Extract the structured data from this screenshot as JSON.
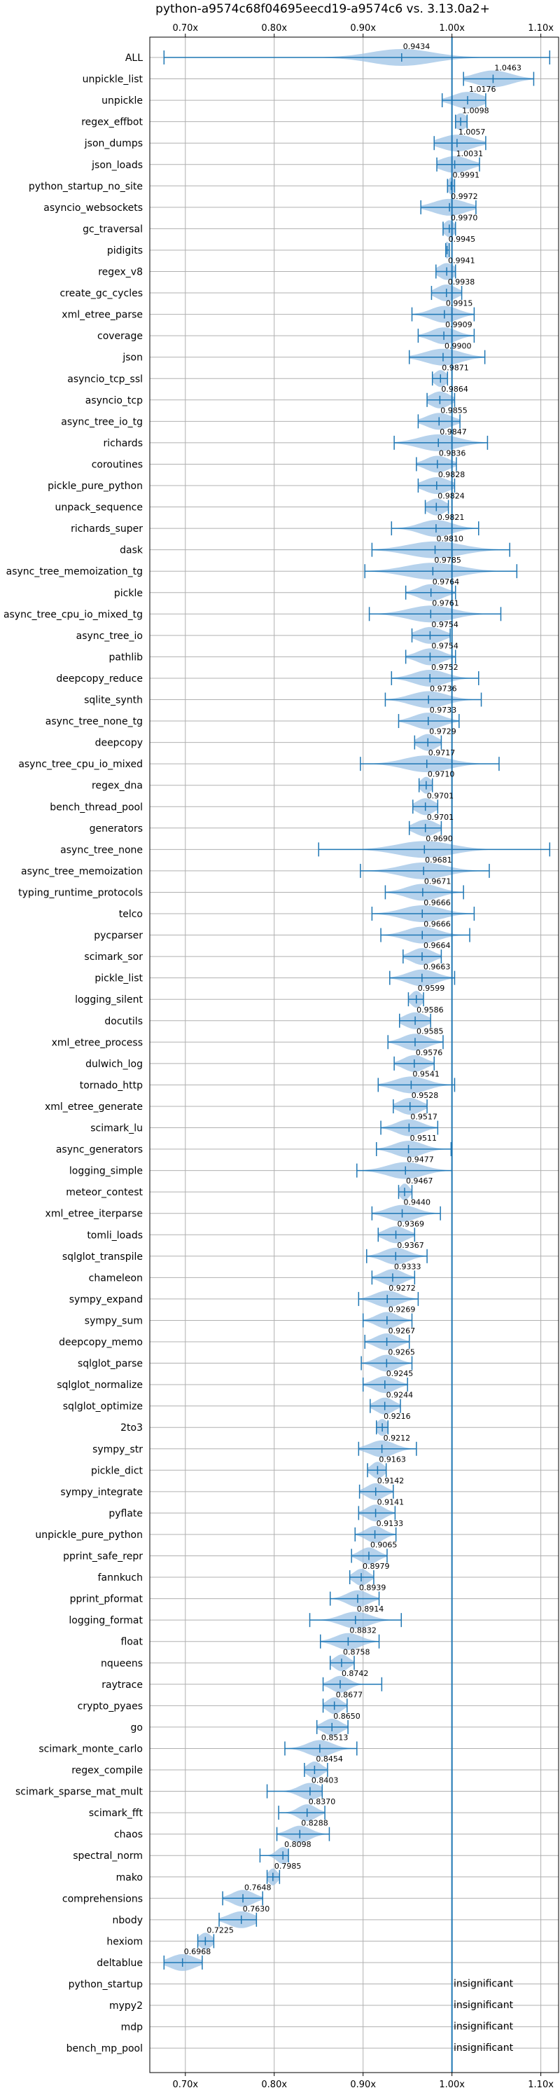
{
  "chart_data": {
    "type": "violin",
    "title": "python-a9574c68f04695eecd19-a9574c6 vs. 3.13.0a2+",
    "xlim": [
      0.66,
      1.12
    ],
    "xticks": [
      0.7,
      0.8,
      0.9,
      1.0,
      1.1
    ],
    "xtick_labels": [
      "0.70x",
      "0.80x",
      "0.90x",
      "1.00x",
      "1.10x"
    ],
    "grid": true,
    "reference_line": 1.0,
    "colors": {
      "violin": "#9ec3e6",
      "line": "#1f77b4",
      "grid": "#b0b0b0"
    },
    "insignificant_label": "insignificant",
    "benchmarks": [
      {
        "name": "ALL",
        "median": 0.9434,
        "min": 0.676,
        "max": 1.11,
        "spread": 0.035,
        "label": "0.9434"
      },
      {
        "name": "unpickle_list",
        "median": 1.0463,
        "min": 1.013,
        "max": 1.092,
        "spread": 0.02,
        "label": "1.0463"
      },
      {
        "name": "unpickle",
        "median": 1.0176,
        "min": 0.989,
        "max": 1.038,
        "spread": 0.016,
        "label": "1.0176"
      },
      {
        "name": "regex_effbot",
        "median": 1.0098,
        "min": 1.004,
        "max": 1.017,
        "spread": 0.007,
        "label": "1.0098"
      },
      {
        "name": "json_dumps",
        "median": 1.0057,
        "min": 0.98,
        "max": 1.038,
        "spread": 0.018,
        "label": "1.0057"
      },
      {
        "name": "json_loads",
        "median": 1.0031,
        "min": 0.983,
        "max": 1.031,
        "spread": 0.016,
        "label": "1.0031"
      },
      {
        "name": "python_startup_no_site",
        "median": 0.9991,
        "min": 0.995,
        "max": 1.003,
        "spread": 0.004,
        "label": "0.9991"
      },
      {
        "name": "asyncio_websockets",
        "median": 0.9972,
        "min": 0.965,
        "max": 1.027,
        "spread": 0.018,
        "label": "0.9972"
      },
      {
        "name": "gc_traversal",
        "median": 0.997,
        "min": 0.99,
        "max": 1.004,
        "spread": 0.006,
        "label": "0.9970"
      },
      {
        "name": "pidigits",
        "median": 0.9945,
        "min": 0.993,
        "max": 0.997,
        "spread": 0.003,
        "label": "0.9945"
      },
      {
        "name": "regex_v8",
        "median": 0.9941,
        "min": 0.982,
        "max": 1.004,
        "spread": 0.009,
        "label": "0.9941"
      },
      {
        "name": "create_gc_cycles",
        "median": 0.9938,
        "min": 0.977,
        "max": 1.011,
        "spread": 0.011,
        "label": "0.9938"
      },
      {
        "name": "xml_etree_parse",
        "median": 0.9915,
        "min": 0.955,
        "max": 1.025,
        "spread": 0.015,
        "label": "0.9915"
      },
      {
        "name": "coverage",
        "median": 0.9909,
        "min": 0.962,
        "max": 1.025,
        "spread": 0.014,
        "label": "0.9909"
      },
      {
        "name": "json",
        "median": 0.99,
        "min": 0.952,
        "max": 1.037,
        "spread": 0.02,
        "label": "0.9900"
      },
      {
        "name": "asyncio_tcp_ssl",
        "median": 0.9871,
        "min": 0.978,
        "max": 0.995,
        "spread": 0.007,
        "label": "0.9871"
      },
      {
        "name": "asyncio_tcp",
        "median": 0.9864,
        "min": 0.972,
        "max": 1.003,
        "spread": 0.011,
        "label": "0.9864"
      },
      {
        "name": "async_tree_io_tg",
        "median": 0.9855,
        "min": 0.962,
        "max": 1.009,
        "spread": 0.014,
        "label": "0.9855"
      },
      {
        "name": "richards",
        "median": 0.9847,
        "min": 0.935,
        "max": 1.04,
        "spread": 0.022,
        "label": "0.9847"
      },
      {
        "name": "coroutines",
        "median": 0.9836,
        "min": 0.96,
        "max": 1.005,
        "spread": 0.013,
        "label": "0.9836"
      },
      {
        "name": "pickle_pure_python",
        "median": 0.9828,
        "min": 0.962,
        "max": 1.003,
        "spread": 0.014,
        "label": "0.9828"
      },
      {
        "name": "unpack_sequence",
        "median": 0.9824,
        "min": 0.97,
        "max": 0.996,
        "spread": 0.01,
        "label": "0.9824"
      },
      {
        "name": "richards_super",
        "median": 0.9821,
        "min": 0.932,
        "max": 1.03,
        "spread": 0.018,
        "label": "0.9821"
      },
      {
        "name": "dask",
        "median": 0.981,
        "min": 0.91,
        "max": 1.065,
        "spread": 0.03,
        "label": "0.9810"
      },
      {
        "name": "async_tree_memoization_tg",
        "median": 0.9785,
        "min": 0.902,
        "max": 1.073,
        "spread": 0.03,
        "label": "0.9785"
      },
      {
        "name": "pickle",
        "median": 0.9764,
        "min": 0.948,
        "max": 1.004,
        "spread": 0.014,
        "label": "0.9764"
      },
      {
        "name": "async_tree_cpu_io_mixed_tg",
        "median": 0.9761,
        "min": 0.907,
        "max": 1.055,
        "spread": 0.025,
        "label": "0.9761"
      },
      {
        "name": "async_tree_io",
        "median": 0.9754,
        "min": 0.955,
        "max": 0.998,
        "spread": 0.014,
        "label": "0.9754"
      },
      {
        "name": "pathlib",
        "median": 0.9754,
        "min": 0.948,
        "max": 1.004,
        "spread": 0.014,
        "label": "0.9754"
      },
      {
        "name": "deepcopy_reduce",
        "median": 0.9752,
        "min": 0.932,
        "max": 1.03,
        "spread": 0.018,
        "label": "0.9752"
      },
      {
        "name": "sqlite_synth",
        "median": 0.9736,
        "min": 0.925,
        "max": 1.033,
        "spread": 0.02,
        "label": "0.9736"
      },
      {
        "name": "async_tree_none_tg",
        "median": 0.9733,
        "min": 0.94,
        "max": 1.008,
        "spread": 0.016,
        "label": "0.9733"
      },
      {
        "name": "deepcopy",
        "median": 0.9729,
        "min": 0.958,
        "max": 0.988,
        "spread": 0.01,
        "label": "0.9729"
      },
      {
        "name": "async_tree_cpu_io_mixed",
        "median": 0.9717,
        "min": 0.897,
        "max": 1.053,
        "spread": 0.025,
        "label": "0.9717"
      },
      {
        "name": "regex_dna",
        "median": 0.971,
        "min": 0.963,
        "max": 0.978,
        "spread": 0.006,
        "label": "0.9710"
      },
      {
        "name": "bench_thread_pool",
        "median": 0.9701,
        "min": 0.956,
        "max": 0.984,
        "spread": 0.01,
        "label": "0.9701"
      },
      {
        "name": "generators",
        "median": 0.9701,
        "min": 0.952,
        "max": 0.988,
        "spread": 0.012,
        "label": "0.9701"
      },
      {
        "name": "async_tree_none",
        "median": 0.969,
        "min": 0.85,
        "max": 1.11,
        "spread": 0.03,
        "label": "0.9690"
      },
      {
        "name": "async_tree_memoization",
        "median": 0.9681,
        "min": 0.897,
        "max": 1.042,
        "spread": 0.025,
        "label": "0.9681"
      },
      {
        "name": "typing_runtime_protocols",
        "median": 0.9671,
        "min": 0.925,
        "max": 1.013,
        "spread": 0.018,
        "label": "0.9671"
      },
      {
        "name": "telco",
        "median": 0.9666,
        "min": 0.91,
        "max": 1.025,
        "spread": 0.022,
        "label": "0.9666"
      },
      {
        "name": "pycparser",
        "median": 0.9666,
        "min": 0.92,
        "max": 1.02,
        "spread": 0.018,
        "label": "0.9666"
      },
      {
        "name": "scimark_sor",
        "median": 0.9664,
        "min": 0.945,
        "max": 0.988,
        "spread": 0.012,
        "label": "0.9664"
      },
      {
        "name": "pickle_list",
        "median": 0.9663,
        "min": 0.93,
        "max": 1.003,
        "spread": 0.016,
        "label": "0.9663"
      },
      {
        "name": "logging_silent",
        "median": 0.9599,
        "min": 0.951,
        "max": 0.968,
        "spread": 0.006,
        "label": "0.9599"
      },
      {
        "name": "docutils",
        "median": 0.9586,
        "min": 0.941,
        "max": 0.976,
        "spread": 0.012,
        "label": "0.9586"
      },
      {
        "name": "xml_etree_process",
        "median": 0.9585,
        "min": 0.928,
        "max": 0.99,
        "spread": 0.014,
        "label": "0.9585"
      },
      {
        "name": "dulwich_log",
        "median": 0.9576,
        "min": 0.935,
        "max": 0.98,
        "spread": 0.012,
        "label": "0.9576"
      },
      {
        "name": "tornado_http",
        "median": 0.9541,
        "min": 0.917,
        "max": 1.003,
        "spread": 0.018,
        "label": "0.9541"
      },
      {
        "name": "xml_etree_generate",
        "median": 0.9528,
        "min": 0.934,
        "max": 0.972,
        "spread": 0.012,
        "label": "0.9528"
      },
      {
        "name": "scimark_lu",
        "median": 0.9517,
        "min": 0.92,
        "max": 0.984,
        "spread": 0.014,
        "label": "0.9517"
      },
      {
        "name": "async_generators",
        "median": 0.9511,
        "min": 0.915,
        "max": 0.999,
        "spread": 0.016,
        "label": "0.9511"
      },
      {
        "name": "logging_simple",
        "median": 0.9477,
        "min": 0.893,
        "max": 1.0,
        "spread": 0.02,
        "label": "0.9477"
      },
      {
        "name": "meteor_contest",
        "median": 0.9467,
        "min": 0.94,
        "max": 0.955,
        "spread": 0.005,
        "label": "0.9467"
      },
      {
        "name": "xml_etree_iterparse",
        "median": 0.944,
        "min": 0.91,
        "max": 0.987,
        "spread": 0.016,
        "label": "0.9440"
      },
      {
        "name": "tomli_loads",
        "median": 0.9369,
        "min": 0.917,
        "max": 0.958,
        "spread": 0.012,
        "label": "0.9369"
      },
      {
        "name": "sqlglot_transpile",
        "median": 0.9367,
        "min": 0.904,
        "max": 0.972,
        "spread": 0.014,
        "label": "0.9367"
      },
      {
        "name": "chameleon",
        "median": 0.9333,
        "min": 0.91,
        "max": 0.958,
        "spread": 0.012,
        "label": "0.9333"
      },
      {
        "name": "sympy_expand",
        "median": 0.9272,
        "min": 0.895,
        "max": 0.962,
        "spread": 0.014,
        "label": "0.9272"
      },
      {
        "name": "sympy_sum",
        "median": 0.9269,
        "min": 0.9,
        "max": 0.955,
        "spread": 0.012,
        "label": "0.9269"
      },
      {
        "name": "deepcopy_memo",
        "median": 0.9267,
        "min": 0.902,
        "max": 0.952,
        "spread": 0.012,
        "label": "0.9267"
      },
      {
        "name": "sqlglot_parse",
        "median": 0.9265,
        "min": 0.898,
        "max": 0.955,
        "spread": 0.012,
        "label": "0.9265"
      },
      {
        "name": "sqlglot_normalize",
        "median": 0.9245,
        "min": 0.9,
        "max": 0.95,
        "spread": 0.012,
        "label": "0.9245"
      },
      {
        "name": "sqlglot_optimize",
        "median": 0.9244,
        "min": 0.908,
        "max": 0.942,
        "spread": 0.01,
        "label": "0.9244"
      },
      {
        "name": "2to3",
        "median": 0.9216,
        "min": 0.915,
        "max": 0.928,
        "spread": 0.006,
        "label": "0.9216"
      },
      {
        "name": "sympy_str",
        "median": 0.9212,
        "min": 0.895,
        "max": 0.96,
        "spread": 0.014,
        "label": "0.9212"
      },
      {
        "name": "pickle_dict",
        "median": 0.9163,
        "min": 0.905,
        "max": 0.926,
        "spread": 0.007,
        "label": "0.9163"
      },
      {
        "name": "sympy_integrate",
        "median": 0.9142,
        "min": 0.896,
        "max": 0.934,
        "spread": 0.01,
        "label": "0.9142"
      },
      {
        "name": "pyflate",
        "median": 0.9141,
        "min": 0.895,
        "max": 0.936,
        "spread": 0.01,
        "label": "0.9141"
      },
      {
        "name": "unpickle_pure_python",
        "median": 0.9133,
        "min": 0.891,
        "max": 0.937,
        "spread": 0.01,
        "label": "0.9133"
      },
      {
        "name": "pprint_safe_repr",
        "median": 0.9065,
        "min": 0.887,
        "max": 0.927,
        "spread": 0.01,
        "label": "0.9065"
      },
      {
        "name": "fannkuch",
        "median": 0.8979,
        "min": 0.885,
        "max": 0.912,
        "spread": 0.008,
        "label": "0.8979"
      },
      {
        "name": "pprint_pformat",
        "median": 0.8939,
        "min": 0.863,
        "max": 0.918,
        "spread": 0.012,
        "label": "0.8939"
      },
      {
        "name": "logging_format",
        "median": 0.8914,
        "min": 0.84,
        "max": 0.943,
        "spread": 0.016,
        "label": "0.8914"
      },
      {
        "name": "float",
        "median": 0.8832,
        "min": 0.852,
        "max": 0.918,
        "spread": 0.014,
        "label": "0.8832"
      },
      {
        "name": "nqueens",
        "median": 0.8758,
        "min": 0.863,
        "max": 0.89,
        "spread": 0.008,
        "label": "0.8758"
      },
      {
        "name": "raytrace",
        "median": 0.8742,
        "min": 0.855,
        "max": 0.921,
        "spread": 0.01,
        "label": "0.8742"
      },
      {
        "name": "crypto_pyaes",
        "median": 0.8677,
        "min": 0.855,
        "max": 0.882,
        "spread": 0.008,
        "label": "0.8677"
      },
      {
        "name": "go",
        "median": 0.865,
        "min": 0.848,
        "max": 0.883,
        "spread": 0.01,
        "label": "0.8650"
      },
      {
        "name": "scimark_monte_carlo",
        "median": 0.8513,
        "min": 0.812,
        "max": 0.893,
        "spread": 0.014,
        "label": "0.8513"
      },
      {
        "name": "regex_compile",
        "median": 0.8454,
        "min": 0.834,
        "max": 0.86,
        "spread": 0.008,
        "label": "0.8454"
      },
      {
        "name": "scimark_sparse_mat_mult",
        "median": 0.8403,
        "min": 0.792,
        "max": 0.854,
        "spread": 0.012,
        "label": "0.8403"
      },
      {
        "name": "scimark_fft",
        "median": 0.837,
        "min": 0.805,
        "max": 0.857,
        "spread": 0.01,
        "label": "0.8370"
      },
      {
        "name": "chaos",
        "median": 0.8288,
        "min": 0.803,
        "max": 0.862,
        "spread": 0.012,
        "label": "0.8288"
      },
      {
        "name": "spectral_norm",
        "median": 0.8098,
        "min": 0.784,
        "max": 0.816,
        "spread": 0.007,
        "label": "0.8098"
      },
      {
        "name": "mako",
        "median": 0.7985,
        "min": 0.792,
        "max": 0.806,
        "spread": 0.005,
        "label": "0.7985"
      },
      {
        "name": "comprehensions",
        "median": 0.7648,
        "min": 0.742,
        "max": 0.787,
        "spread": 0.012,
        "label": "0.7648"
      },
      {
        "name": "nbody",
        "median": 0.763,
        "min": 0.738,
        "max": 0.78,
        "spread": 0.014,
        "label": "0.7630"
      },
      {
        "name": "hexiom",
        "median": 0.7225,
        "min": 0.714,
        "max": 0.732,
        "spread": 0.007,
        "label": "0.7225"
      },
      {
        "name": "deltablue",
        "median": 0.6968,
        "min": 0.676,
        "max": 0.719,
        "spread": 0.014,
        "label": "0.6968"
      },
      {
        "name": "python_startup",
        "insignificant": true
      },
      {
        "name": "mypy2",
        "insignificant": true
      },
      {
        "name": "mdp",
        "insignificant": true
      },
      {
        "name": "bench_mp_pool",
        "insignificant": true
      }
    ]
  }
}
